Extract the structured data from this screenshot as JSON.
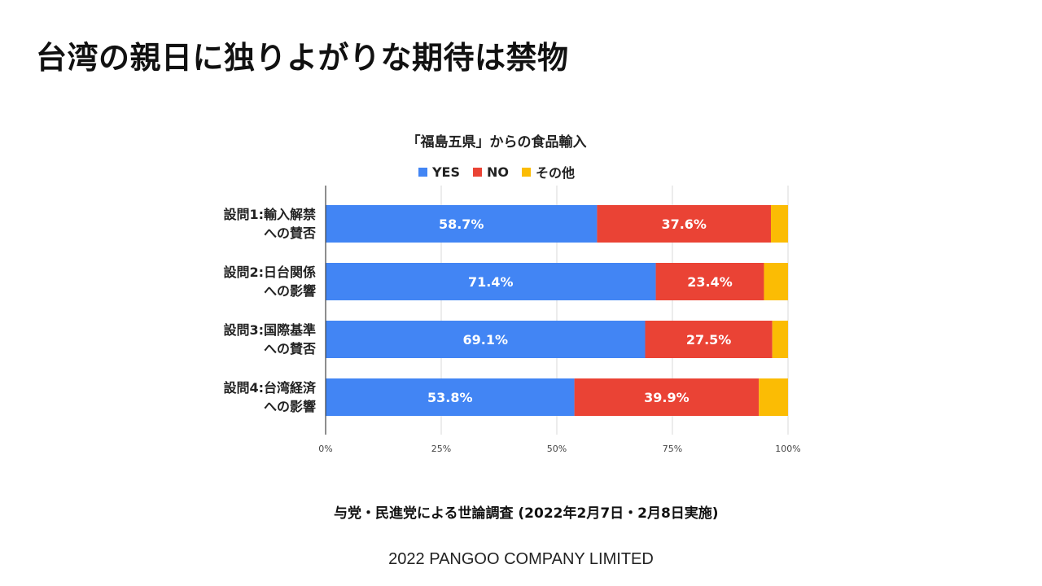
{
  "slide": {
    "title": "台湾の親日に独りよがりな期待は禁物",
    "source_note": "与党・民進党による世論調査 (2022年2月7日・2月8日実施)",
    "footer": "2022 PANGOO COMPANY LIMITED"
  },
  "chart_data": {
    "type": "bar",
    "orientation": "horizontal",
    "stacked": true,
    "title": "「福島五県」からの食品輸入",
    "legend_position": "top",
    "grid": true,
    "categories": [
      [
        "設問1:輸入解禁",
        "への賛否"
      ],
      [
        "設問2:日台関係",
        "への影響"
      ],
      [
        "設問3:国際基準",
        "への賛否"
      ],
      [
        "設問4:台湾経済",
        "への影響"
      ]
    ],
    "series": [
      {
        "name": "YES",
        "color": "#4285f4",
        "values": [
          58.7,
          71.4,
          69.1,
          53.8
        ],
        "labels": [
          "58.7%",
          "71.4%",
          "69.1%",
          "53.8%"
        ]
      },
      {
        "name": "NO",
        "color": "#ea4335",
        "values": [
          37.6,
          23.4,
          27.5,
          39.9
        ],
        "labels": [
          "37.6%",
          "23.4%",
          "27.5%",
          "39.9%"
        ]
      },
      {
        "name": "その他",
        "color": "#fbbc04",
        "values": [
          3.7,
          5.2,
          3.4,
          6.3
        ],
        "labels": [
          "",
          "",
          "",
          ""
        ]
      }
    ],
    "xlim": [
      0,
      100
    ],
    "xticks": [
      0,
      25,
      50,
      75,
      100
    ],
    "xtick_labels": [
      "0%",
      "25%",
      "50%",
      "75%",
      "100%"
    ]
  }
}
